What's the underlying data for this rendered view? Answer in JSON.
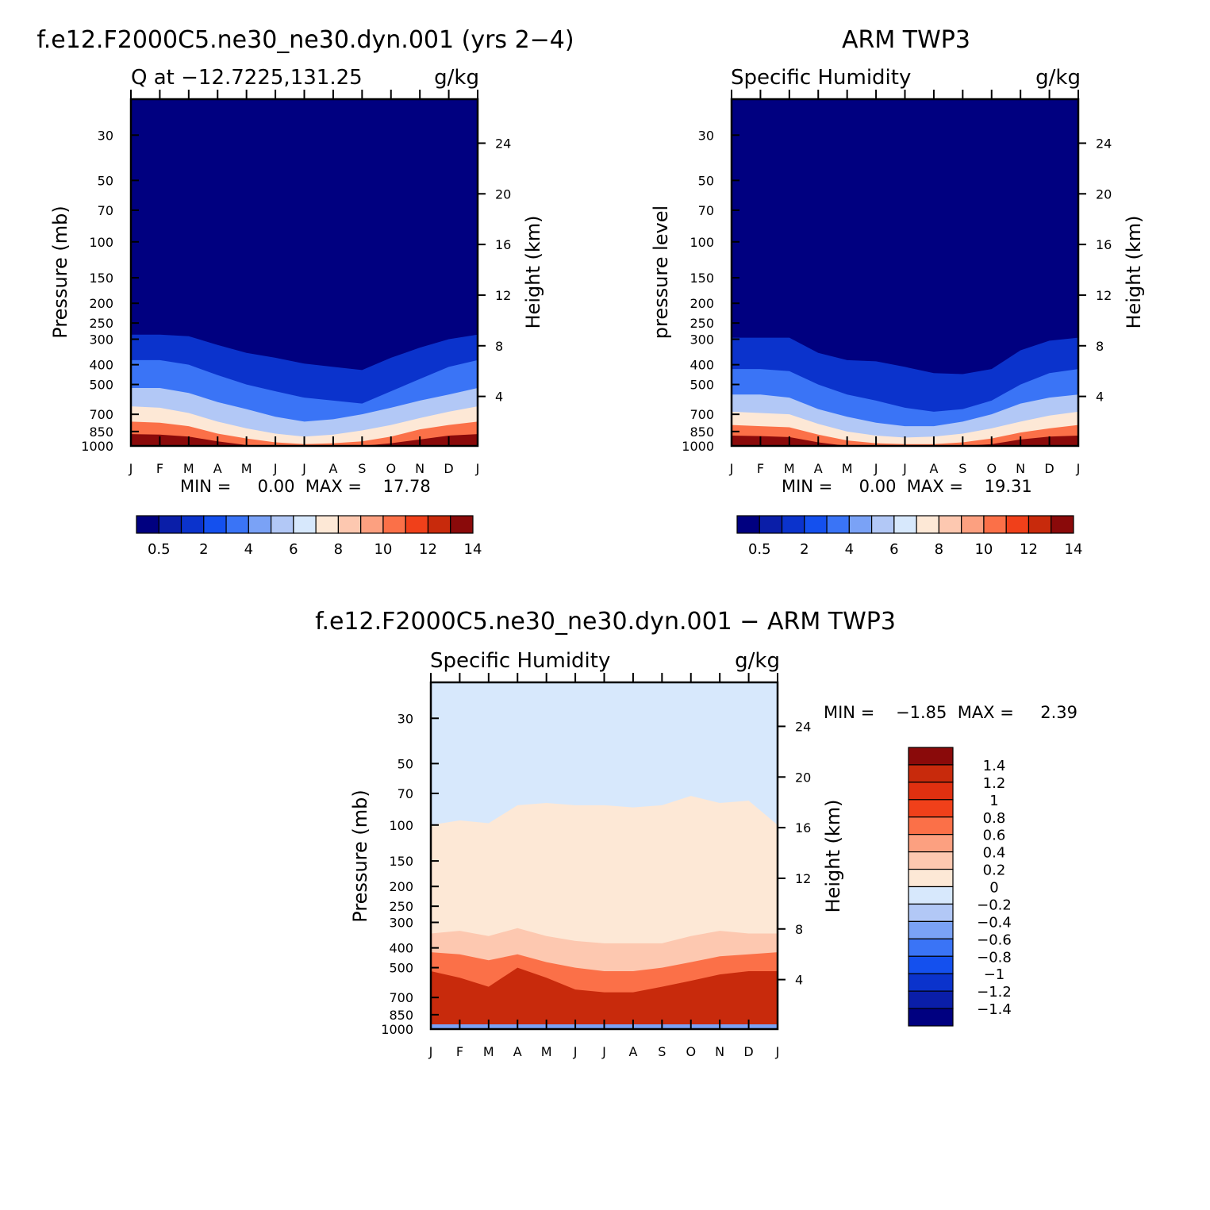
{
  "months": [
    "J",
    "F",
    "M",
    "A",
    "M",
    "J",
    "J",
    "A",
    "S",
    "O",
    "N",
    "D",
    "J"
  ],
  "pressure_ticks": [
    30,
    50,
    70,
    100,
    150,
    200,
    250,
    300,
    400,
    500,
    700,
    850,
    1000
  ],
  "height_ticks": [
    24,
    20,
    16,
    12,
    8,
    4
  ],
  "colors": {
    "humidity": [
      "#000080",
      "#0a1ea8",
      "#0b33cc",
      "#1450ee",
      "#3a74f6",
      "#7aa2f6",
      "#b2c8f6",
      "#d7e8fc",
      "#fde8d6",
      "#fdc8b0",
      "#fca080",
      "#fb7048",
      "#f0401a",
      "#c82a0c",
      "#8a0a0a"
    ],
    "diff_pos": [
      "#fde8d6",
      "#fdc8b0",
      "#fca080",
      "#fb7048",
      "#f0401a",
      "#e03010",
      "#c82a0c",
      "#8a0a0a"
    ],
    "diff_neg": [
      "#d7e8fc",
      "#b2c8f6",
      "#7aa2f6",
      "#3a74f6",
      "#1450ee",
      "#0b33cc",
      "#0a1ea8",
      "#000080"
    ]
  },
  "panels": {
    "model": {
      "title": "f.e12.F2000C5.ne30_ne30.dyn.001 (yrs 2−4)",
      "left_subtitle": "Q at −12.7225,131.25",
      "units": "g/kg",
      "ylabel": "Pressure (mb)",
      "y2label": "Height (km)",
      "stats": "MIN =     0.00  MAX =    17.78"
    },
    "obs": {
      "title": "ARM TWP3",
      "left_subtitle": "Specific Humidity",
      "units": "g/kg",
      "ylabel": "pressure level",
      "y2label": "Height (km)",
      "stats": "MIN =     0.00  MAX =    19.31"
    },
    "diff": {
      "title": "f.e12.F2000C5.ne30_ne30.dyn.001 − ARM TWP3",
      "left_subtitle": "Specific Humidity",
      "units": "g/kg",
      "ylabel": "Pressure (mb)",
      "y2label": "Height (km)",
      "stats": "MIN =    −1.85  MAX =     2.39"
    }
  },
  "colorbar_humidity": {
    "labels": [
      "0.5",
      "2",
      "4",
      "6",
      "8",
      "10",
      "12",
      "14"
    ]
  },
  "colorbar_diff": {
    "labels": [
      "1.4",
      "1.2",
      "1",
      "0.8",
      "0.6",
      "0.4",
      "0.2",
      "0",
      "−0.2",
      "−0.4",
      "−0.6",
      "−0.8",
      "−1",
      "−1.2",
      "−1.4"
    ]
  },
  "chart_data": [
    {
      "type": "heatmap",
      "name": "model",
      "title": "f.e12.F2000C5.ne30_ne30.dyn.001 (yrs 2−4)",
      "x": [
        "J",
        "F",
        "M",
        "A",
        "M",
        "J",
        "J",
        "A",
        "S",
        "O",
        "N",
        "D",
        "J"
      ],
      "y_pressure_mb": [
        30,
        50,
        70,
        100,
        150,
        200,
        250,
        300,
        400,
        500,
        700,
        850,
        1000
      ],
      "y_log_scale": true,
      "contour_levels": [
        0.5,
        1,
        2,
        3,
        4,
        5,
        6,
        7,
        8,
        9,
        10,
        11,
        12,
        13,
        14
      ],
      "isoline_pressure_mb": {
        "0.5": [
          285,
          285,
          290,
          320,
          350,
          370,
          395,
          410,
          425,
          370,
          330,
          300,
          285
        ],
        "2": [
          380,
          380,
          400,
          450,
          500,
          540,
          580,
          600,
          620,
          540,
          470,
          410,
          380
        ],
        "5": [
          520,
          520,
          550,
          610,
          660,
          720,
          760,
          740,
          700,
          650,
          600,
          560,
          520
        ],
        "7": [
          640,
          650,
          690,
          760,
          820,
          870,
          900,
          880,
          840,
          790,
          730,
          680,
          640
        ],
        "10": [
          760,
          770,
          800,
          870,
          920,
          960,
          980,
          970,
          950,
          900,
          830,
          790,
          760
        ],
        "14": [
          875,
          880,
          900,
          950,
          990,
          1000,
          1000,
          1000,
          1000,
          970,
          930,
          890,
          875
        ]
      },
      "min": 0.0,
      "max": 17.78
    },
    {
      "type": "heatmap",
      "name": "obs",
      "title": "ARM TWP3",
      "x": [
        "J",
        "F",
        "M",
        "A",
        "M",
        "J",
        "J",
        "A",
        "S",
        "O",
        "N",
        "D",
        "J"
      ],
      "y_log_scale": true,
      "contour_levels": [
        0.5,
        1,
        2,
        3,
        4,
        5,
        6,
        7,
        8,
        9,
        10,
        11,
        12,
        13,
        14
      ],
      "isoline_pressure_mb": {
        "0.5": [
          295,
          295,
          295,
          350,
          380,
          385,
          410,
          440,
          445,
          420,
          340,
          305,
          295
        ],
        "2": [
          420,
          420,
          430,
          500,
          560,
          600,
          650,
          680,
          660,
          600,
          500,
          440,
          420
        ],
        "5": [
          560,
          560,
          580,
          660,
          720,
          770,
          800,
          800,
          760,
          700,
          620,
          580,
          560
        ],
        "7": [
          680,
          690,
          700,
          780,
          850,
          890,
          910,
          900,
          870,
          820,
          760,
          710,
          680
        ],
        "10": [
          790,
          800,
          810,
          880,
          940,
          970,
          980,
          980,
          960,
          920,
          860,
          820,
          790
        ],
        "14": [
          890,
          895,
          905,
          960,
          1000,
          1000,
          1000,
          1000,
          1000,
          980,
          930,
          900,
          890
        ]
      },
      "min": 0.0,
      "max": 19.31
    },
    {
      "type": "heatmap",
      "name": "diff",
      "title": "f.e12.F2000C5.ne30_ne30.dyn.001 − ARM TWP3",
      "x": [
        "J",
        "F",
        "M",
        "A",
        "M",
        "J",
        "J",
        "A",
        "S",
        "O",
        "N",
        "D",
        "J"
      ],
      "y_log_scale": true,
      "contour_levels": [
        -1.4,
        -1.2,
        -1,
        -0.8,
        -0.6,
        -0.4,
        -0.2,
        0,
        0.2,
        0.4,
        0.6,
        0.8,
        1,
        1.2,
        1.4
      ],
      "isoline_pressure_mb": {
        "0": [
          100,
          95,
          98,
          80,
          78,
          80,
          80,
          82,
          80,
          72,
          78,
          76,
          100
        ],
        "0.2": [
          340,
          330,
          350,
          320,
          350,
          370,
          380,
          380,
          380,
          350,
          330,
          340,
          340
        ],
        "0.6": [
          420,
          430,
          460,
          430,
          470,
          500,
          520,
          520,
          500,
          470,
          440,
          430,
          420
        ],
        "1.0": [
          520,
          560,
          620,
          500,
          560,
          640,
          660,
          660,
          620,
          580,
          540,
          520,
          520
        ]
      },
      "min": -1.85,
      "max": 2.39
    }
  ]
}
